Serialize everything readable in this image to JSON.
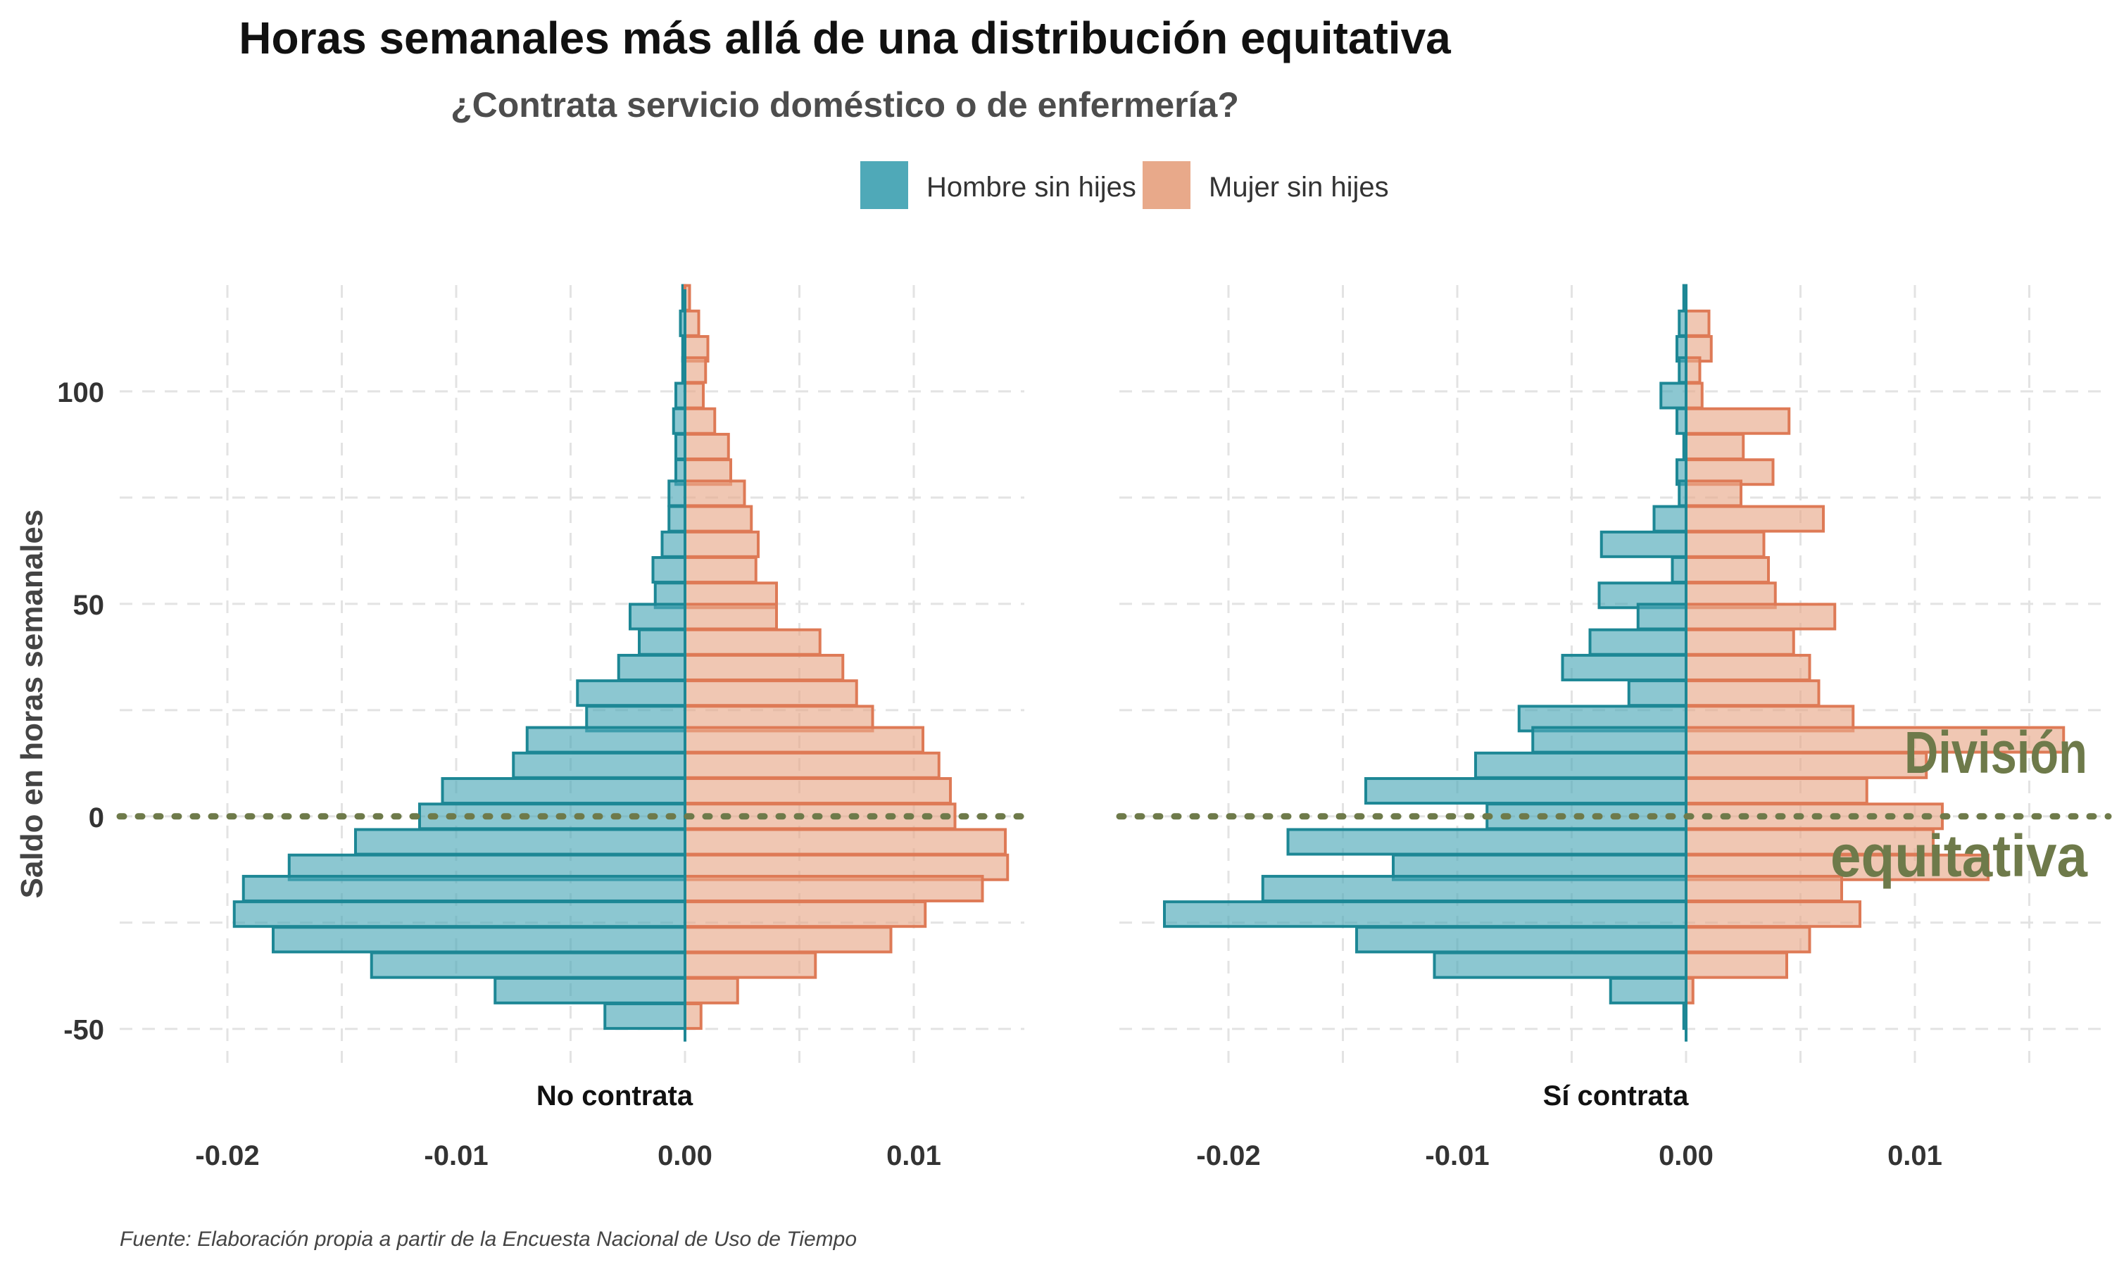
{
  "chart_data": {
    "type": "bar",
    "orientation": "horizontal-mirrored",
    "title": "Horas semanales más allá de una distribución equitativa",
    "subtitle": "¿Contrata servicio doméstico o de enfermería?",
    "ylabel": "Saldo en horas semanales",
    "caption": "Fuente: Elaboración propia a partir de la Encuesta Nacional de Uso de Tiempo",
    "annotation": "División equitativa",
    "annotation_lines": [
      "División",
      "equitativa"
    ],
    "reference_line": {
      "y": 0,
      "style": "dotted"
    },
    "legend": {
      "position": "top",
      "entries": [
        "Hombre sin hijes",
        "Mujer sin hijes"
      ]
    },
    "colors": {
      "Hombre sin hijes": {
        "fill": "#4fa9b8",
        "stroke": "#1d8795"
      },
      "Mujer sin hijes": {
        "fill": "#e8a98a",
        "stroke": "#de7a56"
      },
      "annotation": "#6e7a4a"
    },
    "ylim": [
      -58,
      125
    ],
    "y_ticks": [
      100,
      50,
      0,
      -50
    ],
    "y_tick_labels": [
      "100",
      "50",
      "0",
      "-50"
    ],
    "xlim": [
      -0.02,
      0.015
    ],
    "x_ticks": [
      -0.02,
      -0.01,
      0.0,
      0.01
    ],
    "x_tick_labels": [
      "-0.02",
      "-0.01",
      "0.00",
      "0.01"
    ],
    "grid": true,
    "bin_width": 5.8,
    "bins": [
      122,
      116,
      110,
      105,
      99,
      93,
      87,
      81,
      76,
      70,
      64,
      58,
      52,
      47,
      41,
      35,
      29,
      23,
      18,
      12,
      6,
      0,
      -6,
      -12,
      -17,
      -23,
      -29,
      -35,
      -41,
      -47
    ],
    "panels": [
      {
        "label": "No contrata",
        "series": [
          {
            "name": "Hombre sin hijes",
            "values": [
              -0.0001,
              -0.0002,
              -0.0001,
              -0.0001,
              -0.0004,
              -0.0005,
              -0.0004,
              -0.0004,
              -0.0007,
              -0.0007,
              -0.001,
              -0.0014,
              -0.0013,
              -0.0024,
              -0.002,
              -0.0029,
              -0.0047,
              -0.0043,
              -0.0069,
              -0.0075,
              -0.0106,
              -0.0116,
              -0.0144,
              -0.0173,
              -0.0193,
              -0.0197,
              -0.018,
              -0.0137,
              -0.0083,
              -0.0035
            ]
          },
          {
            "name": "Mujer sin hijes",
            "values": [
              0.0002,
              0.0006,
              0.001,
              0.0009,
              0.0008,
              0.0013,
              0.0019,
              0.002,
              0.0026,
              0.0029,
              0.0032,
              0.0031,
              0.004,
              0.004,
              0.0059,
              0.0069,
              0.0075,
              0.0082,
              0.0104,
              0.0111,
              0.0116,
              0.0118,
              0.014,
              0.0141,
              0.013,
              0.0105,
              0.009,
              0.0057,
              0.0023,
              0.0007
            ]
          }
        ]
      },
      {
        "label": "Sí contrata",
        "series": [
          {
            "name": "Hombre sin hijes",
            "values": [
              -0.0001,
              -0.0003,
              -0.0004,
              -0.0003,
              -0.0011,
              -0.0004,
              -0.0001,
              -0.0004,
              -0.0003,
              -0.0014,
              -0.0037,
              -0.0006,
              -0.0038,
              -0.0021,
              -0.0042,
              -0.0054,
              -0.0025,
              -0.0073,
              -0.0067,
              -0.0092,
              -0.014,
              -0.0087,
              -0.0174,
              -0.0128,
              -0.0185,
              -0.0228,
              -0.0144,
              -0.011,
              -0.0033,
              -0.0001
            ]
          },
          {
            "name": "Mujer sin hijes",
            "values": [
              0.0,
              0.001,
              0.0011,
              0.0006,
              0.0007,
              0.0045,
              0.0025,
              0.0038,
              0.0024,
              0.006,
              0.0034,
              0.0036,
              0.0039,
              0.0065,
              0.0047,
              0.0054,
              0.0058,
              0.0073,
              0.0165,
              0.0105,
              0.0079,
              0.0112,
              0.0108,
              0.0132,
              0.0068,
              0.0076,
              0.0054,
              0.0044,
              0.0003,
              0.0
            ]
          }
        ]
      }
    ]
  }
}
